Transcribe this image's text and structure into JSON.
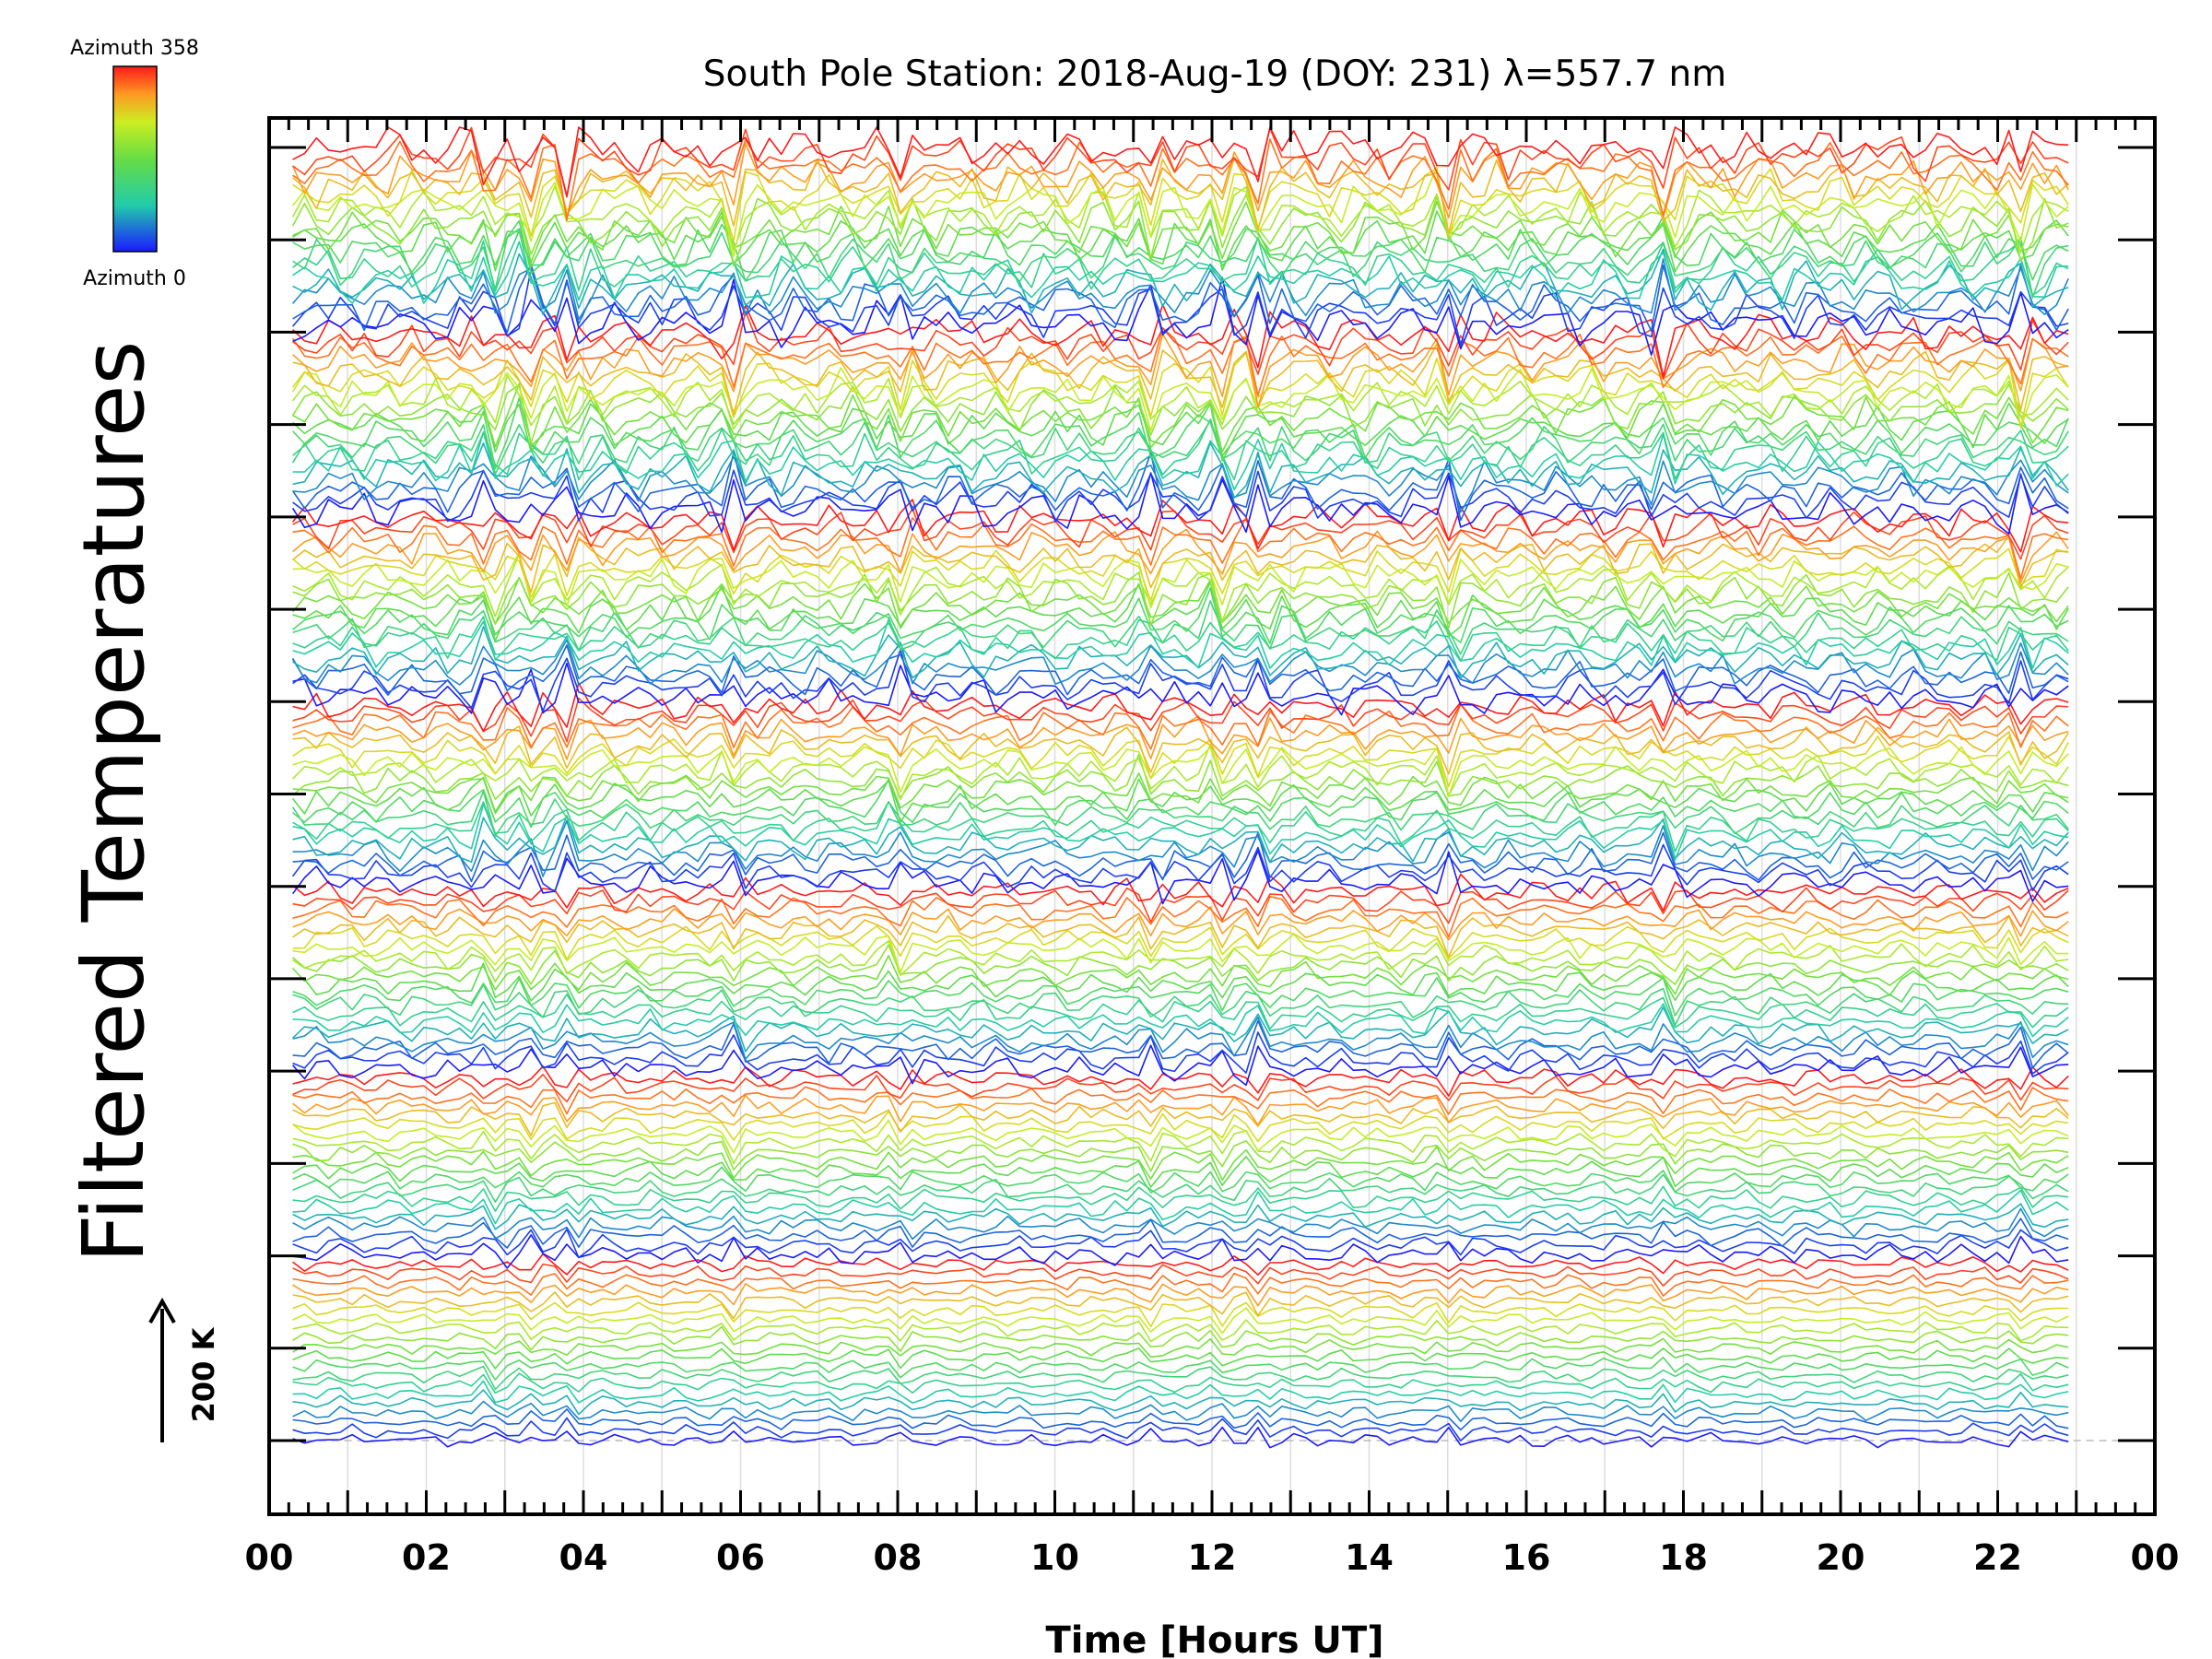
{
  "chart_data": {
    "type": "line",
    "title": "South Pole Station: 2018-Aug-19 (DOY: 231) λ=557.7 nm",
    "xlabel": "Time [Hours UT]",
    "ylabel": "Filtered Temperatures",
    "x_tick_labels": [
      "00",
      "02",
      "04",
      "06",
      "08",
      "10",
      "12",
      "14",
      "16",
      "18",
      "20",
      "22",
      "00"
    ],
    "xlim": [
      0,
      24
    ],
    "data_x_range": [
      0.3,
      22.9
    ],
    "grid": "vertical lines every 1 hour",
    "n_rings": 7,
    "azimuths_per_ring": 20,
    "scale_bar": {
      "label": "200 K",
      "value_k": 200
    },
    "legend": {
      "placement": "top-left",
      "top_label": "Azimuth 358",
      "bottom_label": "Azimuth 0",
      "colormap": "rainbow",
      "azimuth_range": [
        0,
        358
      ]
    },
    "colors": {
      "azimuth_0": "#1a1aff",
      "azimuth_90": "#22ccaa",
      "azimuth_180": "#aaee22",
      "azimuth_358": "#ff1a1a"
    },
    "events_hours": [
      2.8,
      3.3,
      3.8,
      5.9,
      8.0,
      11.2,
      12.1,
      12.6,
      15.0,
      17.8,
      22.3
    ]
  }
}
